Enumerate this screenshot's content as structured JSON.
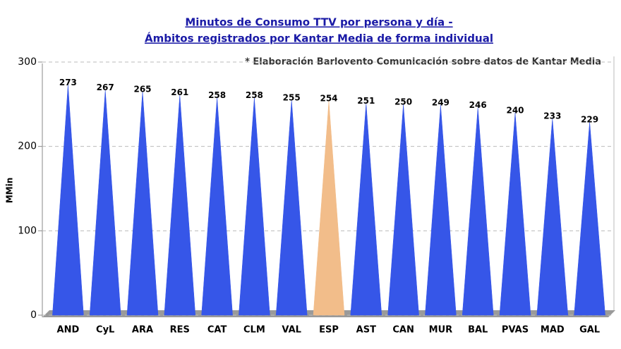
{
  "chart_data": {
    "type": "cone-bar",
    "title": "Minutos de Consumo TTV por persona y día -",
    "subtitle": "Ámbitos registrados por Kantar Media de forma individual",
    "annotation": "* Elaboración Barlovento Comunicación sobre datos de Kantar Media",
    "y_label": "MMin",
    "categories": [
      "AND",
      "CyL",
      "ARA",
      "RES",
      "CAT",
      "CLM",
      "VAL",
      "ESP",
      "AST",
      "CAN",
      "MUR",
      "BAL",
      "PVAS",
      "MAD",
      "GAL"
    ],
    "values": [
      273,
      267,
      265,
      261,
      258,
      258,
      255,
      254,
      251,
      250,
      249,
      246,
      240,
      233,
      229
    ],
    "colors": [
      "#3656e8",
      "#3656e8",
      "#3656e8",
      "#3656e8",
      "#3656e8",
      "#3656e8",
      "#3656e8",
      "#f2bd8a",
      "#3656e8",
      "#3656e8",
      "#3656e8",
      "#3656e8",
      "#3656e8",
      "#3656e8",
      "#3656e8"
    ],
    "ylim": [
      0,
      300
    ],
    "yticks": [
      0,
      100,
      200,
      300
    ],
    "grid": true
  }
}
